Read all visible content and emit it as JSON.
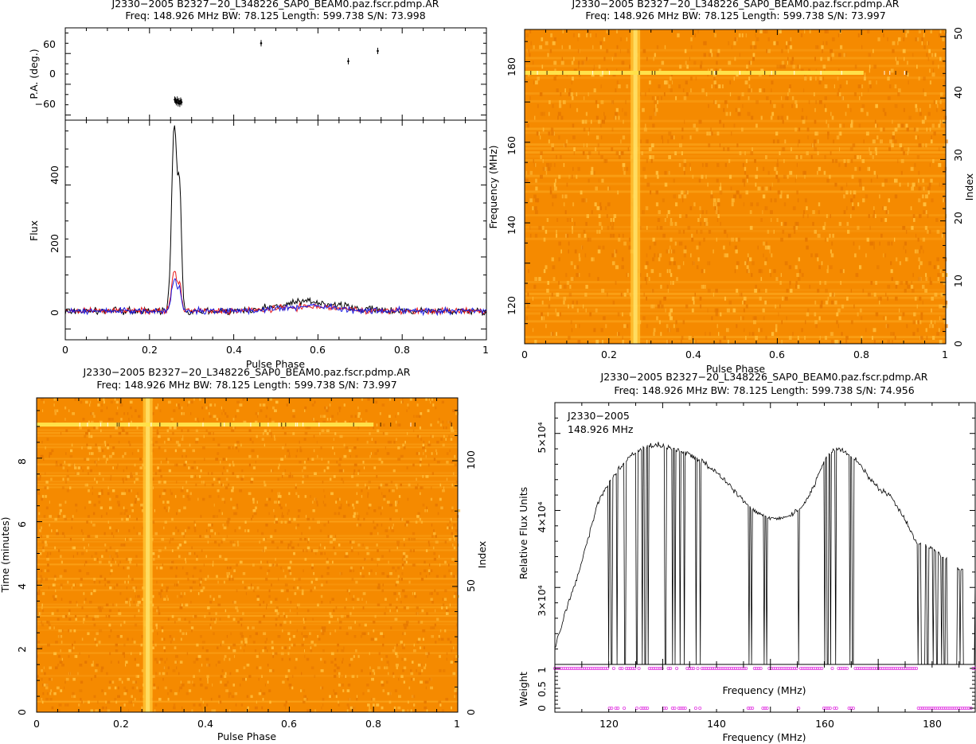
{
  "chart_data": [
    {
      "type": "line",
      "title": "J2330−2005 B2327−20_L348226_SAP0_BEAM0.paz.fscr.pdmp.AR",
      "subtitle": "Freq: 148.926 MHz BW: 78.125 Length: 599.738 S/N: 73.998",
      "xlabel": "Pulse Phase",
      "xlim": [
        0,
        1
      ],
      "xticks": [
        "0",
        "0.2",
        "0.4",
        "0.6",
        "0.8",
        "1"
      ],
      "panels": [
        {
          "ylabel": "P.A. (deg.)",
          "ylim": [
            -90,
            90
          ],
          "yticks": [
            "−60",
            "0",
            "60"
          ],
          "points": [
            {
              "x": 0.26,
              "y": -50
            },
            {
              "x": 0.262,
              "y": -52
            },
            {
              "x": 0.264,
              "y": -55
            },
            {
              "x": 0.266,
              "y": -50
            },
            {
              "x": 0.268,
              "y": -57
            },
            {
              "x": 0.27,
              "y": -53
            },
            {
              "x": 0.272,
              "y": -58
            },
            {
              "x": 0.274,
              "y": -52
            },
            {
              "x": 0.276,
              "y": -55
            },
            {
              "x": 0.465,
              "y": 60
            },
            {
              "x": 0.672,
              "y": 25
            },
            {
              "x": 0.742,
              "y": 45
            }
          ]
        },
        {
          "ylabel": "Flux",
          "ylim": [
            -80,
            530
          ],
          "yticks": [
            "0",
            "200",
            "400"
          ],
          "series": [
            {
              "color": "#000000",
              "peak": 520,
              "noise": 15
            },
            {
              "color": "#e81c1c",
              "peak": 110,
              "noise": 13
            },
            {
              "color": "#1c1ce0",
              "peak": 85,
              "noise": 13
            }
          ]
        }
      ]
    },
    {
      "type": "heatmap",
      "title": "J2330−2005 B2327−20_L348226_SAP0_BEAM0.paz.fscr.pdmp.AR",
      "subtitle": "Freq: 148.926 MHz BW: 78.125 Length: 599.738 S/N: 73.997",
      "xlabel": "Pulse Phase",
      "ylabel": "Frequency (MHz)",
      "y2label": "Index",
      "xlim": [
        0,
        1
      ],
      "ylim": [
        110,
        188
      ],
      "xticks": [
        "0",
        "0.2",
        "0.4",
        "0.6",
        "0.8",
        "1"
      ],
      "yticks": [
        "120",
        "140",
        "160",
        "180"
      ],
      "y2ticks": [
        "0",
        "10",
        "20",
        "30",
        "40",
        "50"
      ],
      "colormap": [
        "#f58a00",
        "#ffd43a"
      ]
    },
    {
      "type": "heatmap",
      "title": "J2330−2005 B2327−20_L348226_SAP0_BEAM0.paz.fscr.pdmp.AR",
      "subtitle": "Freq: 148.926 MHz BW: 78.125 Length: 599.738 S/N: 73.997",
      "xlabel": "Pulse Phase",
      "ylabel": "Time (minutes)",
      "y2label": "Index",
      "xlim": [
        0,
        1
      ],
      "ylim": [
        0,
        9.9
      ],
      "xticks": [
        "0",
        "0.2",
        "0.4",
        "0.6",
        "0.8",
        "1"
      ],
      "yticks": [
        "0",
        "2",
        "4",
        "6",
        "8"
      ],
      "y2ticks": [
        "0",
        "50",
        "100"
      ],
      "colormap": [
        "#f58a00",
        "#ffd43a"
      ]
    },
    {
      "type": "line",
      "title": "J2330−2005 B2327−20_L348226_SAP0_BEAM0.paz.fscr.pdmp.AR",
      "subtitle": "Freq: 148.926 MHz BW: 78.125 Length: 599.738 S/N: 74.956",
      "xlabel": "Frequency (MHz)",
      "xlim": [
        110,
        188
      ],
      "xticks": [
        "120",
        "140",
        "160",
        "180"
      ],
      "annotation": [
        "J2330−2005",
        "148.926 MHz"
      ],
      "panels": [
        {
          "ylabel": "Relative Flux Units",
          "ylim": [
            20000,
            54000
          ],
          "yticks": [
            "3×10⁴",
            "4×10⁴",
            "5×10⁴"
          ],
          "x": [
            110,
            112,
            114,
            116,
            118,
            120,
            122,
            124,
            126,
            128,
            130,
            132,
            134,
            136,
            138,
            140,
            142,
            144,
            146,
            148,
            150,
            152,
            154,
            156,
            158,
            160,
            162,
            164,
            166,
            168,
            170,
            172,
            174,
            176,
            177,
            180,
            182,
            184,
            186,
            188
          ],
          "values": [
            22000,
            27000,
            31000,
            36000,
            41000,
            43500,
            45500,
            47000,
            48000,
            48500,
            48500,
            48000,
            47500,
            47000,
            46000,
            45000,
            43500,
            42000,
            40500,
            39500,
            39000,
            39000,
            39500,
            40500,
            43000,
            46500,
            48000,
            47500,
            46500,
            44500,
            43000,
            42000,
            40000,
            37500,
            36000,
            35000,
            34000,
            33000,
            32000,
            31000
          ],
          "dips": [
            120,
            120.5,
            121.5,
            123,
            125.2,
            126.2,
            126.8,
            127.3,
            130.5,
            131.8,
            132.3,
            133.2,
            134,
            136.2,
            137,
            146,
            146.5,
            148.8,
            149.3,
            155.2,
            160.1,
            160.6,
            161.2,
            162.1,
            164.8,
            165.3,
            177.4,
            179.2,
            180.2,
            180.9,
            181.8,
            182.3,
            185.2
          ]
        },
        {
          "ylabel": "Weight",
          "ylim": [
            -0.1,
            1.1
          ],
          "yticks": [
            "0",
            "0.5",
            "1"
          ],
          "xlabel": "Frequency (MHz)",
          "marker_color": "#e23ce2"
        }
      ]
    }
  ]
}
